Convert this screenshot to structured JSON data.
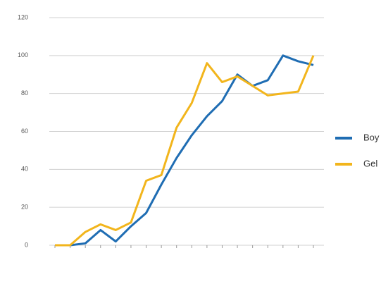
{
  "chart_data": {
    "type": "line",
    "categories": [
      null,
      null,
      null,
      null,
      null,
      null,
      null,
      null,
      null,
      null,
      null,
      null,
      null,
      null,
      null,
      null,
      null,
      null
    ],
    "series": [
      {
        "name": "Boy",
        "color": "#1f6db3",
        "values": [
          0,
          0,
          1,
          8,
          2,
          10,
          17,
          32,
          46,
          58,
          68,
          76,
          90,
          84,
          87,
          100,
          97,
          95
        ]
      },
      {
        "name": "Gel",
        "color": "#f2b51c",
        "values": [
          0,
          0,
          7,
          11,
          8,
          12,
          34,
          37,
          62,
          75,
          96,
          86,
          89,
          84,
          79,
          80,
          81,
          100
        ]
      }
    ],
    "ylim": [
      0,
      120
    ],
    "yticks": [
      0,
      20,
      40,
      60,
      80,
      100,
      120
    ],
    "grid": true,
    "legend": "right"
  }
}
